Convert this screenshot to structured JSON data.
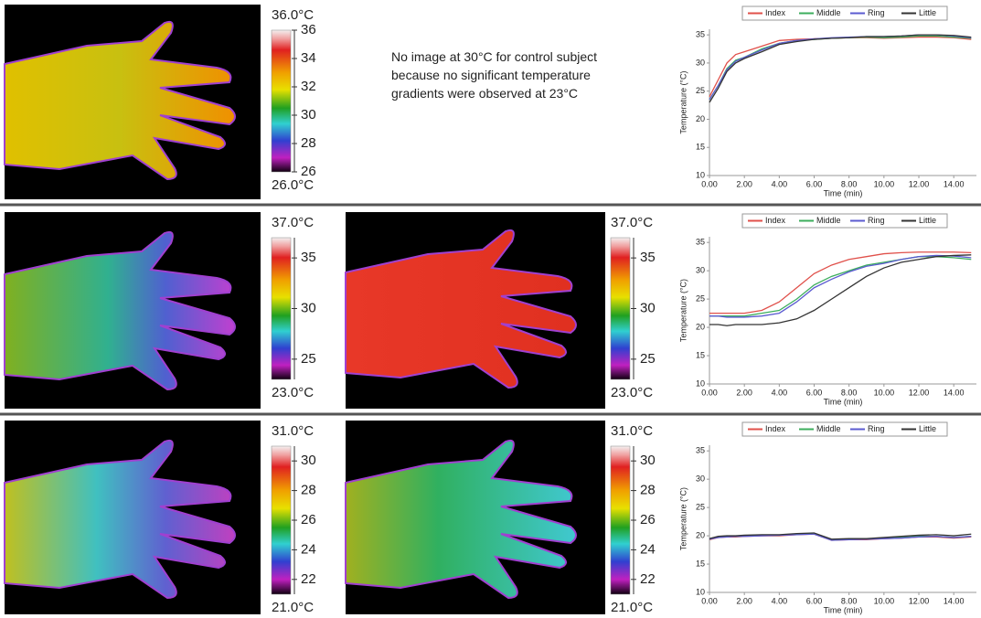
{
  "note": "No image at 30°C for control subject because no significant temperature gradients were observed at 23°C",
  "colorbars": [
    {
      "max_label": "36.0°C",
      "min_label": "26.0°C",
      "lim": [
        26,
        36
      ],
      "ticks": [
        26,
        28,
        30,
        32,
        34,
        36
      ]
    },
    {
      "max_label": "37.0°C",
      "min_label": "23.0°C",
      "lim": [
        23,
        37
      ],
      "ticks": [
        25,
        30,
        35
      ]
    },
    {
      "max_label": "37.0°C",
      "min_label": "23.0°C",
      "lim": [
        23,
        37
      ],
      "ticks": [
        25,
        30,
        35
      ]
    },
    {
      "max_label": "31.0°C",
      "min_label": "21.0°C",
      "lim": [
        21,
        31
      ],
      "ticks": [
        22,
        24,
        26,
        28,
        30
      ]
    },
    {
      "max_label": "31.0°C",
      "min_label": "21.0°C",
      "lim": [
        21,
        31
      ],
      "ticks": [
        22,
        24,
        26,
        28,
        30
      ]
    }
  ],
  "chart_data": [
    {
      "type": "line",
      "x_label": "Time (min)",
      "y_label": "Temperature (°C)",
      "x": [
        0,
        0.5,
        1,
        1.5,
        2,
        3,
        4,
        5,
        6,
        7,
        8,
        9,
        10,
        11,
        12,
        13,
        14,
        15
      ],
      "xlim": [
        0,
        15.3
      ],
      "ylim": [
        10,
        36
      ],
      "xticks": [
        {
          "value": 0,
          "label": "0.00"
        },
        {
          "value": 2,
          "label": "2.00"
        },
        {
          "value": 4,
          "label": "4.00"
        },
        {
          "value": 6,
          "label": "6.00"
        },
        {
          "value": 8,
          "label": "8.00"
        },
        {
          "value": 10,
          "label": "10.00"
        },
        {
          "value": 12,
          "label": "12.00"
        },
        {
          "value": 14,
          "label": "14.00"
        }
      ],
      "yticks": [
        10,
        15,
        20,
        25,
        30,
        35
      ],
      "series": [
        {
          "name": "Index",
          "color": "#e0504a",
          "values": [
            24,
            27,
            30,
            31.5,
            32,
            33,
            34,
            34.2,
            34.3,
            34.4,
            34.5,
            34.5,
            34.4,
            34.5,
            34.6,
            34.6,
            34.5,
            34.2
          ]
        },
        {
          "name": "Middle",
          "color": "#3cae5c",
          "values": [
            23.5,
            26,
            29,
            30.5,
            31,
            32.5,
            33.5,
            34,
            34.2,
            34.4,
            34.5,
            34.6,
            34.5,
            34.6,
            34.8,
            34.8,
            34.6,
            34.4
          ]
        },
        {
          "name": "Ring",
          "color": "#5b5bd0",
          "values": [
            23.5,
            26,
            28.8,
            30.3,
            31,
            32.3,
            33.5,
            34,
            34.3,
            34.5,
            34.6,
            34.7,
            34.7,
            34.8,
            35,
            35,
            34.8,
            34.5
          ]
        },
        {
          "name": "Little",
          "color": "#333333",
          "values": [
            23,
            25.5,
            28.5,
            30,
            30.8,
            32,
            33.3,
            33.8,
            34.2,
            34.4,
            34.5,
            34.7,
            34.7,
            34.8,
            35,
            35,
            34.9,
            34.6
          ]
        }
      ]
    },
    {
      "type": "line",
      "x_label": "Time (min)",
      "y_label": "Temperature (°C)",
      "x": [
        0,
        0.5,
        1,
        1.5,
        2,
        3,
        4,
        5,
        6,
        7,
        8,
        9,
        10,
        11,
        12,
        13,
        14,
        15
      ],
      "xlim": [
        0,
        15.3
      ],
      "ylim": [
        10,
        36
      ],
      "xticks": [
        {
          "value": 0,
          "label": "0.00"
        },
        {
          "value": 2,
          "label": "2.00"
        },
        {
          "value": 4,
          "label": "4.00"
        },
        {
          "value": 6,
          "label": "6.00"
        },
        {
          "value": 8,
          "label": "8.00"
        },
        {
          "value": 10,
          "label": "10.00"
        },
        {
          "value": 12,
          "label": "12.00"
        },
        {
          "value": 14,
          "label": "14.00"
        }
      ],
      "yticks": [
        10,
        15,
        20,
        25,
        30,
        35
      ],
      "series": [
        {
          "name": "Index",
          "color": "#e0504a",
          "values": [
            22.5,
            22.5,
            22.5,
            22.5,
            22.5,
            23,
            24.5,
            27,
            29.5,
            31,
            32,
            32.5,
            33,
            33.2,
            33.3,
            33.3,
            33.3,
            33.2
          ]
        },
        {
          "name": "Middle",
          "color": "#3cae5c",
          "values": [
            22,
            22,
            22,
            22,
            22,
            22.5,
            23,
            25,
            27.5,
            29,
            30,
            31,
            31.5,
            32,
            32.5,
            32.5,
            32.3,
            32
          ]
        },
        {
          "name": "Ring",
          "color": "#5b5bd0",
          "values": [
            22,
            22,
            21.8,
            21.8,
            21.8,
            22,
            22.5,
            24.5,
            27,
            28.5,
            29.8,
            30.8,
            31.3,
            32,
            32.5,
            32.7,
            32.6,
            32.3
          ]
        },
        {
          "name": "Little",
          "color": "#333333",
          "values": [
            20.5,
            20.5,
            20.3,
            20.5,
            20.5,
            20.5,
            20.8,
            21.5,
            23,
            25,
            27,
            29,
            30.5,
            31.5,
            32,
            32.5,
            32.7,
            32.8
          ]
        }
      ]
    },
    {
      "type": "line",
      "x_label": "Time (min)",
      "y_label": "Temperature (°C)",
      "x": [
        0,
        0.5,
        1,
        1.5,
        2,
        3,
        4,
        5,
        6,
        7,
        8,
        9,
        10,
        11,
        12,
        13,
        14,
        15
      ],
      "xlim": [
        0,
        15.3
      ],
      "ylim": [
        10,
        36
      ],
      "xticks": [
        {
          "value": 0,
          "label": "0.00"
        },
        {
          "value": 2,
          "label": "2.00"
        },
        {
          "value": 4,
          "label": "4.00"
        },
        {
          "value": 6,
          "label": "6.00"
        },
        {
          "value": 8,
          "label": "8.00"
        },
        {
          "value": 10,
          "label": "10.00"
        },
        {
          "value": 12,
          "label": "12.00"
        },
        {
          "value": 14,
          "label": "14.00"
        }
      ],
      "yticks": [
        10,
        15,
        20,
        25,
        30,
        35
      ],
      "series": [
        {
          "name": "Index",
          "color": "#e0504a",
          "values": [
            19.3,
            19.7,
            19.8,
            19.8,
            19.9,
            20,
            20,
            20.2,
            20.3,
            19.2,
            19.3,
            19.3,
            19.5,
            19.6,
            19.8,
            19.8,
            19.6,
            19.8
          ]
        },
        {
          "name": "Middle",
          "color": "#3cae5c",
          "values": [
            19.4,
            19.8,
            19.9,
            19.9,
            20,
            20.1,
            20.1,
            20.3,
            20.4,
            19.3,
            19.4,
            19.4,
            19.6,
            19.7,
            19.9,
            19.9,
            19.7,
            19.9
          ]
        },
        {
          "name": "Ring",
          "color": "#5b5bd0",
          "values": [
            19.4,
            19.7,
            19.8,
            19.9,
            19.9,
            20,
            20.1,
            20.2,
            20.3,
            19.2,
            19.3,
            19.4,
            19.5,
            19.6,
            19.8,
            19.9,
            19.7,
            19.9
          ]
        },
        {
          "name": "Little",
          "color": "#333333",
          "values": [
            19.5,
            19.9,
            20,
            20,
            20.1,
            20.2,
            20.2,
            20.4,
            20.5,
            19.4,
            19.5,
            19.5,
            19.7,
            19.9,
            20.1,
            20.2,
            20,
            20.3
          ]
        }
      ]
    }
  ]
}
